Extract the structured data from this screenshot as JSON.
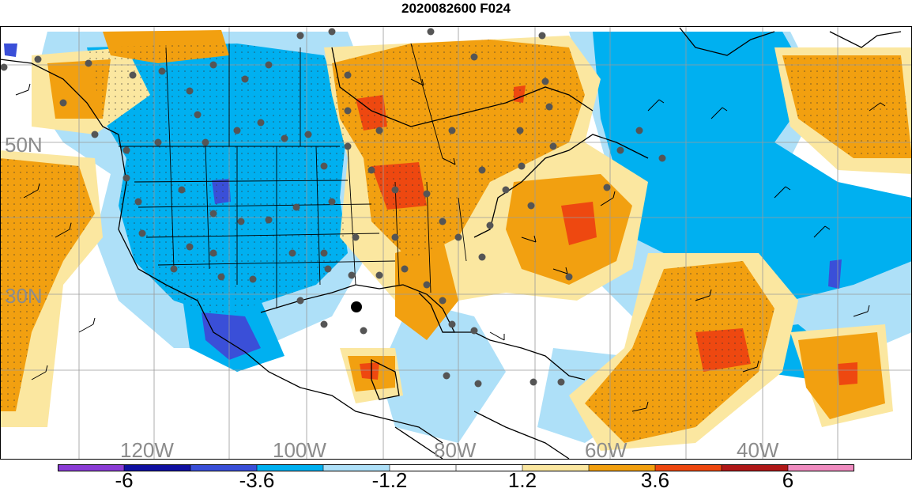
{
  "title": "2020082600 F024",
  "map": {
    "lat_labels": [
      "50N",
      "30N"
    ],
    "lon_labels": [
      "120W",
      "100W",
      "80W",
      "60W",
      "40W"
    ],
    "label_color": "#8c8c8c"
  },
  "colorbar": {
    "labels": [
      "-6",
      "-3.6",
      "-1.2",
      "1.2",
      "3.6",
      "6"
    ],
    "colors": [
      "#8b3dd6",
      "#1010a0",
      "#3a4fd8",
      "#00b0f0",
      "#aee0f8",
      "#ffffff",
      "#ffffff",
      "#fbe7a0",
      "#f2a010",
      "#ee4810",
      "#b01818",
      "#f08cc0"
    ]
  }
}
